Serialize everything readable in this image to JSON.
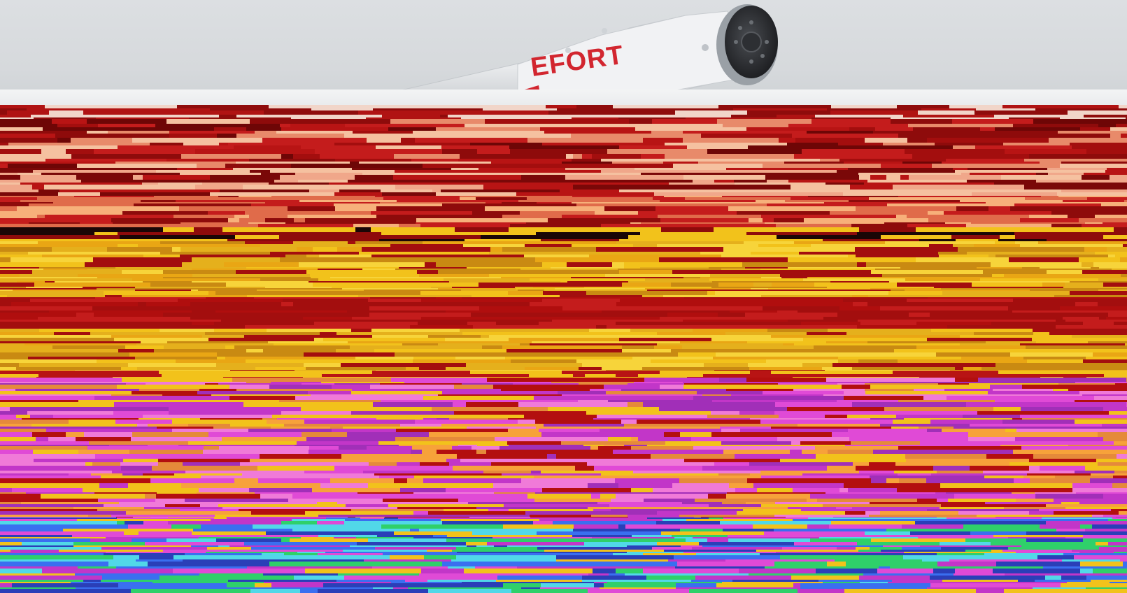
{
  "logo": {
    "text": "EFORT",
    "color": "#d2262f"
  },
  "colors": {
    "background": "#d9dbdd",
    "arm_body": "#eef0f2",
    "flange": "#2a2c30",
    "glitch_red": "#b30f0f",
    "glitch_yellow": "#f2c21b",
    "glitch_magenta": "#c236c8",
    "glitch_blue": "#3a6ff0",
    "glitch_green": "#2fd06a"
  },
  "icons": [
    "robot-arm-illustration",
    "flange-disc-icon"
  ]
}
